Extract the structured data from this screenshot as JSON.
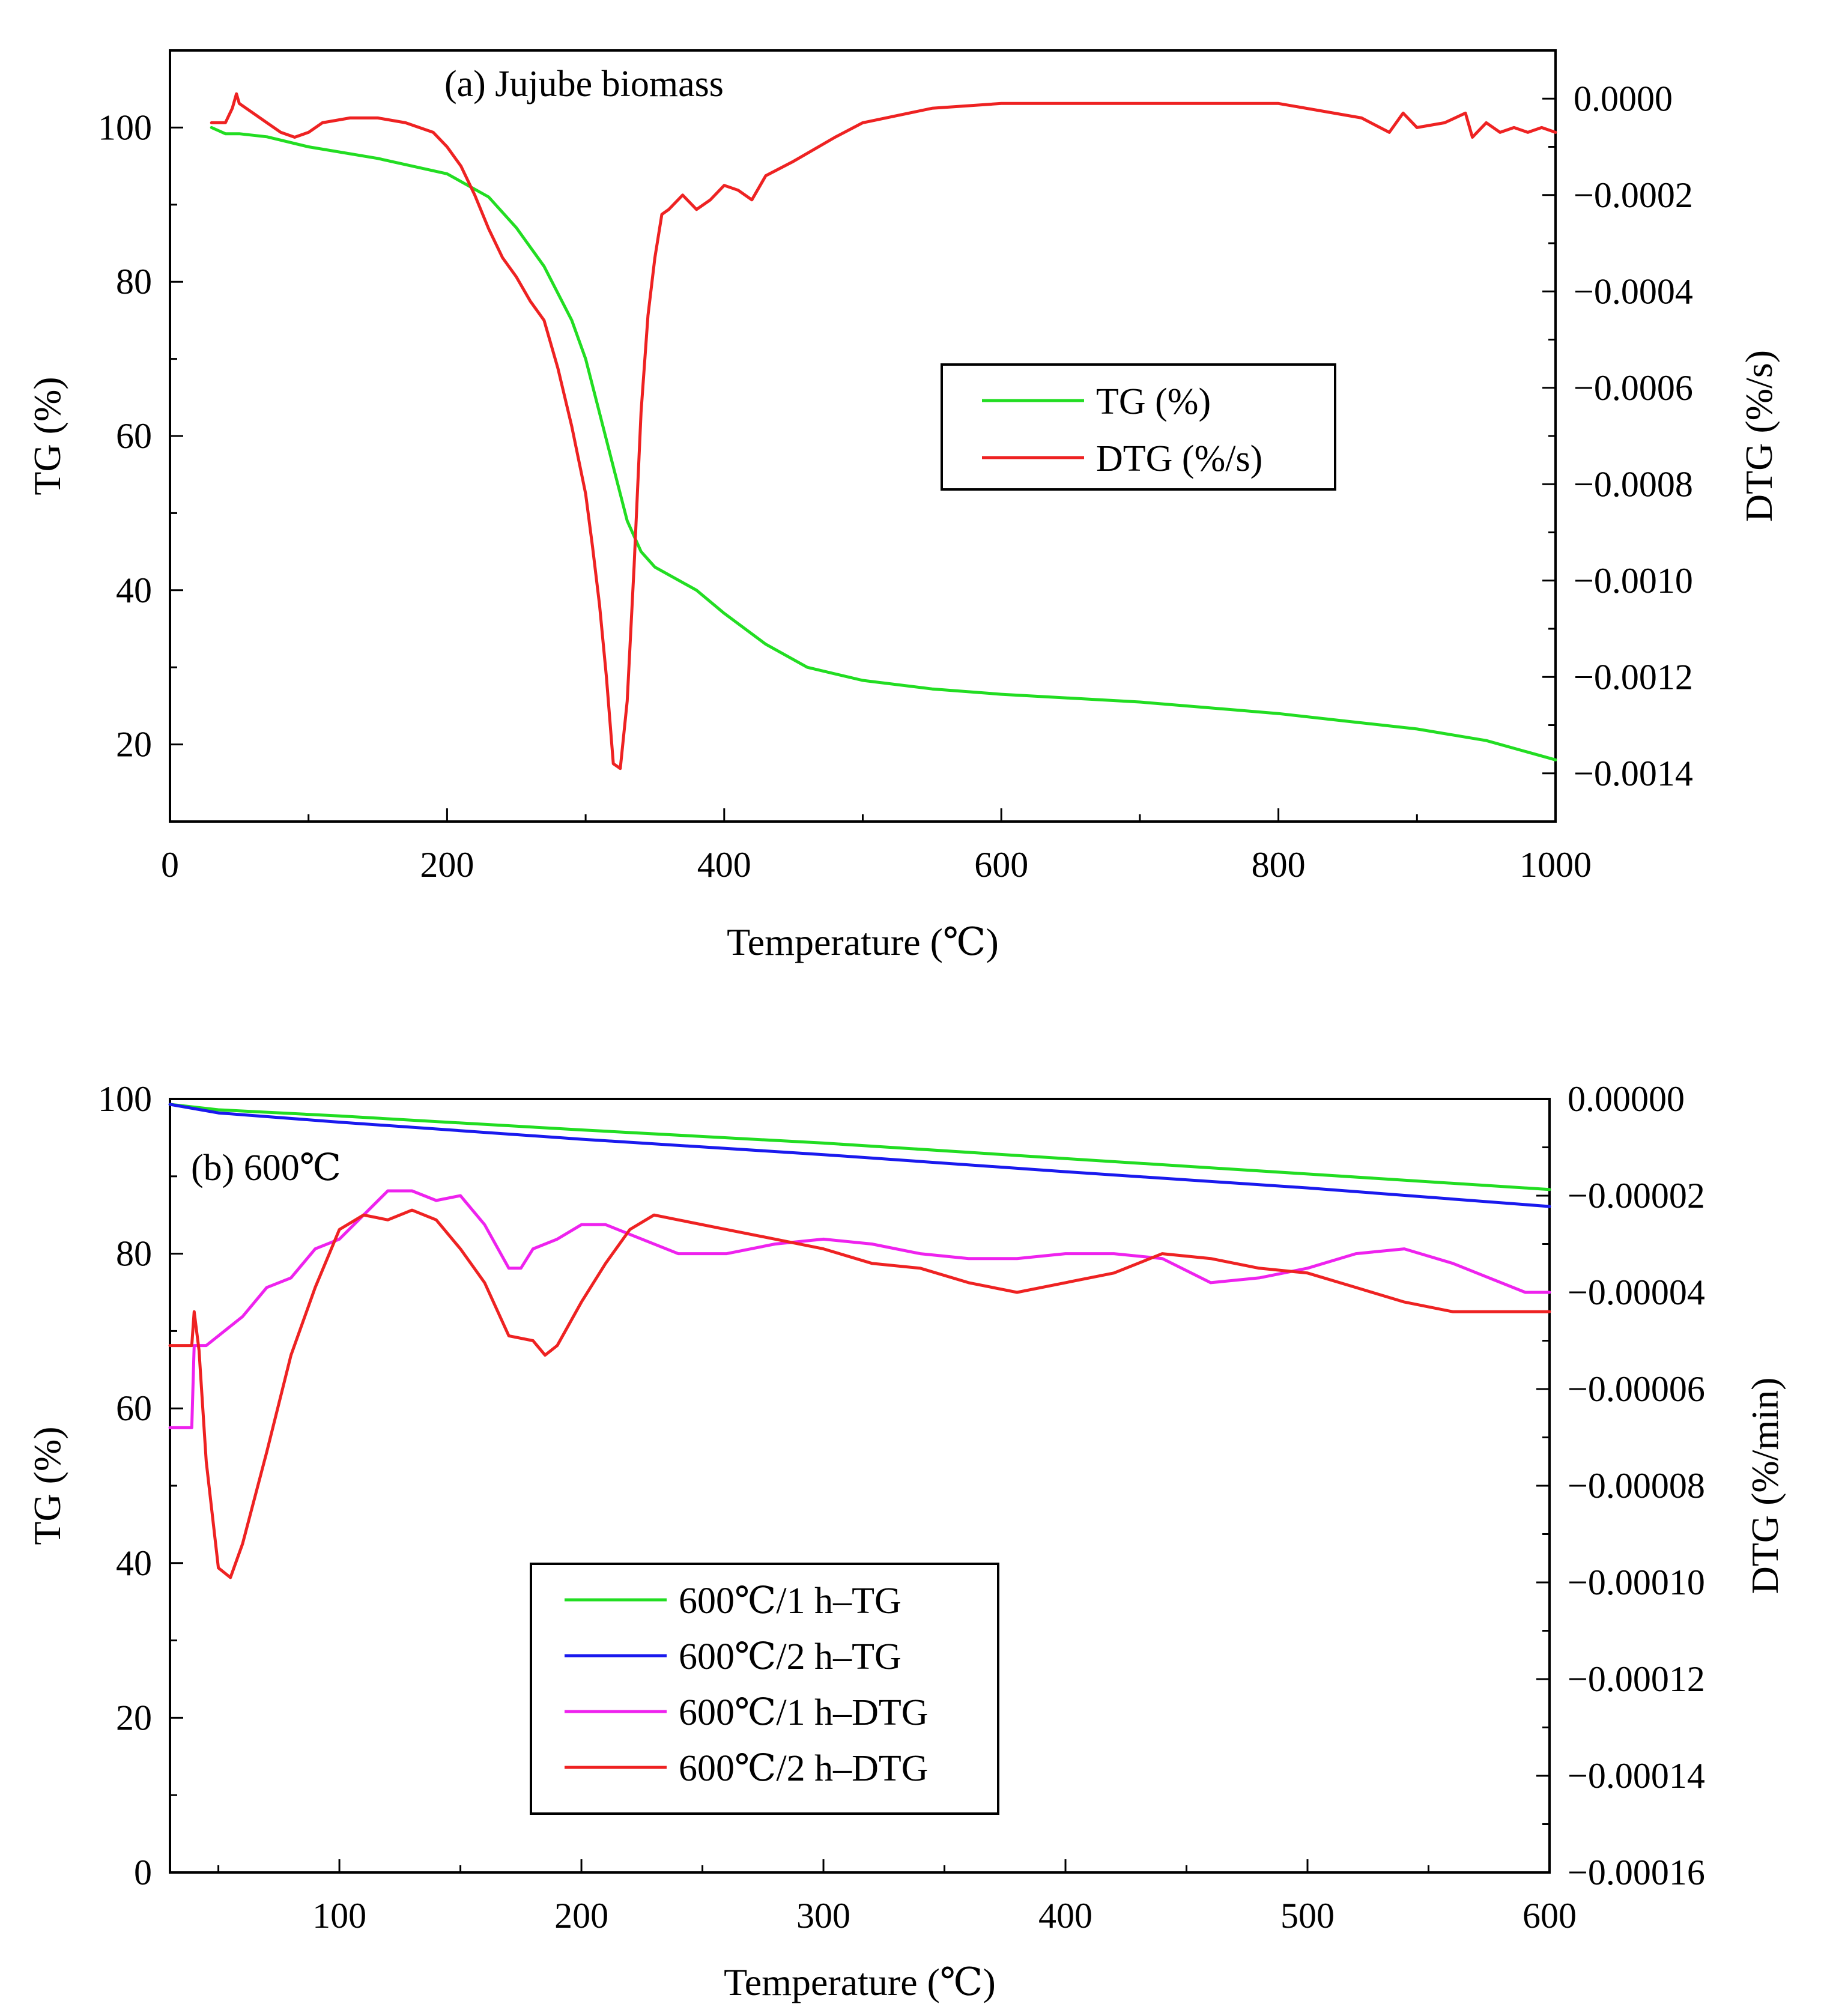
{
  "chart_data": [
    {
      "id": "a",
      "type": "line",
      "annotation": "(a) Jujube biomass",
      "xlabel": "Temperature (℃)",
      "ylabel_left": "TG (%)",
      "ylabel_right": "DTG (%/s)",
      "xlim": [
        0,
        1000
      ],
      "ylim_left": [
        10,
        110
      ],
      "ylim_right": [
        -0.0015,
        0.0001
      ],
      "x_ticks": [
        "0",
        "200",
        "400",
        "600",
        "800",
        "1000"
      ],
      "y_ticks_left": [
        "20",
        "40",
        "60",
        "80",
        "100"
      ],
      "y_ticks_right": [
        "0.0000",
        "−0.0002",
        "−0.0004",
        "−0.0006",
        "−0.0008",
        "−0.0010",
        "−0.0012",
        "−0.0014"
      ],
      "legend_position": "center-right",
      "series": [
        {
          "name": "TG (%)",
          "axis": "left",
          "color": "#22dd22",
          "x": [
            30,
            35,
            40,
            50,
            70,
            100,
            150,
            200,
            230,
            250,
            270,
            290,
            300,
            310,
            320,
            330,
            340,
            350,
            380,
            400,
            430,
            460,
            500,
            550,
            600,
            700,
            800,
            850,
            900,
            950,
            1000
          ],
          "y": [
            100,
            99.6,
            99.2,
            99.2,
            98.8,
            97.5,
            96,
            94,
            91,
            87,
            82,
            75,
            70,
            63,
            56,
            49,
            45,
            43,
            40,
            37,
            33,
            30,
            28.3,
            27.2,
            26.5,
            25.5,
            24,
            23,
            22,
            20.5,
            18
          ]
        },
        {
          "name": "DTG (%/s)",
          "axis": "right",
          "color": "#ee2222",
          "x": [
            30,
            40,
            45,
            48,
            50,
            55,
            60,
            70,
            80,
            90,
            100,
            110,
            130,
            150,
            170,
            190,
            200,
            210,
            220,
            230,
            240,
            250,
            260,
            270,
            280,
            290,
            300,
            305,
            310,
            315,
            320,
            325,
            330,
            335,
            340,
            345,
            350,
            355,
            360,
            370,
            380,
            390,
            400,
            410,
            420,
            430,
            450,
            480,
            500,
            550,
            600,
            650,
            700,
            800,
            860,
            880,
            890,
            900,
            920,
            935,
            940,
            950,
            960,
            970,
            980,
            990,
            1000
          ],
          "y": [
            -5e-05,
            -5e-05,
            -2e-05,
            1e-05,
            -1e-05,
            -2e-05,
            -3e-05,
            -5e-05,
            -7e-05,
            -8e-05,
            -7e-05,
            -5e-05,
            -4e-05,
            -4e-05,
            -5e-05,
            -7e-05,
            -0.0001,
            -0.00014,
            -0.0002,
            -0.00027,
            -0.00033,
            -0.00037,
            -0.00042,
            -0.00046,
            -0.00056,
            -0.00068,
            -0.00082,
            -0.00093,
            -0.00105,
            -0.0012,
            -0.00138,
            -0.00139,
            -0.00125,
            -0.00097,
            -0.00065,
            -0.00045,
            -0.00033,
            -0.00024,
            -0.00023,
            -0.0002,
            -0.00023,
            -0.00021,
            -0.00018,
            -0.00019,
            -0.00021,
            -0.00016,
            -0.00013,
            -8e-05,
            -5e-05,
            -2e-05,
            -1e-05,
            -1e-05,
            -1e-05,
            -1e-05,
            -4e-05,
            -7e-05,
            -3e-05,
            -6e-05,
            -5e-05,
            -3e-05,
            -8e-05,
            -5e-05,
            -7e-05,
            -6e-05,
            -7e-05,
            -6e-05,
            -7e-05
          ]
        }
      ]
    },
    {
      "id": "b",
      "type": "line",
      "annotation": "(b) 600℃",
      "xlabel": "Temperature (℃)",
      "ylabel_left": "TG (%)",
      "ylabel_right": "DTG (%/min)",
      "xlim": [
        30,
        600
      ],
      "ylim_left": [
        0,
        100
      ],
      "ylim_right": [
        -0.00016,
        0
      ],
      "x_ticks": [
        "100",
        "200",
        "300",
        "400",
        "500",
        "600"
      ],
      "y_ticks_left": [
        "0",
        "20",
        "40",
        "60",
        "80",
        "100"
      ],
      "y_ticks_right": [
        "0.00000",
        "−0.00002",
        "−0.00004",
        "−0.00006",
        "−0.00008",
        "−0.00010",
        "−0.00012",
        "−0.00014",
        "−0.00016"
      ],
      "legend_position": "bottom-center-left",
      "series": [
        {
          "name": "600℃/1 h–TG",
          "axis": "left",
          "color": "#22dd22",
          "x": [
            30,
            50,
            100,
            200,
            300,
            400,
            500,
            600
          ],
          "y": [
            99.3,
            98.6,
            97.8,
            96,
            94.3,
            92.3,
            90.3,
            88.3
          ]
        },
        {
          "name": "600℃/2 h–TG",
          "axis": "left",
          "color": "#1a1aee",
          "x": [
            30,
            50,
            100,
            200,
            300,
            400,
            500,
            600
          ],
          "y": [
            99.3,
            98.2,
            97,
            94.8,
            92.8,
            90.6,
            88.5,
            86.1
          ]
        },
        {
          "name": "600℃/1 h–DTG",
          "axis": "right",
          "color": "#ee22ee",
          "x": [
            30,
            39,
            40,
            45,
            50,
            60,
            70,
            80,
            90,
            100,
            110,
            120,
            130,
            140,
            150,
            160,
            170,
            175,
            180,
            190,
            200,
            210,
            220,
            240,
            260,
            280,
            300,
            320,
            340,
            360,
            380,
            400,
            420,
            440,
            460,
            480,
            500,
            520,
            540,
            560,
            570,
            590,
            600
          ],
          "y": [
            -6.8e-05,
            -6.8e-05,
            -5.1e-05,
            -5.1e-05,
            -4.9e-05,
            -4.5e-05,
            -3.9e-05,
            -3.7e-05,
            -3.1e-05,
            -2.9e-05,
            -2.4e-05,
            -1.9e-05,
            -1.9e-05,
            -2.1e-05,
            -2e-05,
            -2.6e-05,
            -3.5e-05,
            -3.5e-05,
            -3.1e-05,
            -2.9e-05,
            -2.6e-05,
            -2.6e-05,
            -2.8e-05,
            -3.2e-05,
            -3.2e-05,
            -3e-05,
            -2.9e-05,
            -3e-05,
            -3.2e-05,
            -3.3e-05,
            -3.3e-05,
            -3.2e-05,
            -3.2e-05,
            -3.3e-05,
            -3.8e-05,
            -3.7e-05,
            -3.5e-05,
            -3.2e-05,
            -3.1e-05,
            -3.4e-05,
            -3.6e-05,
            -4e-05,
            -4e-05
          ]
        },
        {
          "name": "600℃/2 h–DTG",
          "axis": "right",
          "color": "#ee2222",
          "x": [
            30,
            39,
            40,
            42,
            45,
            50,
            55,
            60,
            70,
            80,
            90,
            100,
            110,
            120,
            130,
            140,
            150,
            160,
            170,
            180,
            185,
            190,
            200,
            210,
            220,
            230,
            240,
            260,
            280,
            300,
            320,
            340,
            360,
            380,
            400,
            420,
            440,
            460,
            480,
            500,
            520,
            540,
            560,
            580,
            600
          ],
          "y": [
            -5.1e-05,
            -5.1e-05,
            -4.4e-05,
            -5.2e-05,
            -7.5e-05,
            -9.7e-05,
            -9.9e-05,
            -9.2e-05,
            -7.3e-05,
            -5.3e-05,
            -3.9e-05,
            -2.7e-05,
            -2.4e-05,
            -2.5e-05,
            -2.3e-05,
            -2.5e-05,
            -3.1e-05,
            -3.8e-05,
            -4.9e-05,
            -5e-05,
            -5.3e-05,
            -5.1e-05,
            -4.2e-05,
            -3.4e-05,
            -2.7e-05,
            -2.4e-05,
            -2.5e-05,
            -2.7e-05,
            -2.9e-05,
            -3.1e-05,
            -3.4e-05,
            -3.5e-05,
            -3.8e-05,
            -4e-05,
            -3.8e-05,
            -3.6e-05,
            -3.2e-05,
            -3.3e-05,
            -3.5e-05,
            -3.6e-05,
            -3.9e-05,
            -4.2e-05,
            -4.4e-05,
            -4.4e-05,
            -4.4e-05
          ]
        }
      ]
    }
  ]
}
